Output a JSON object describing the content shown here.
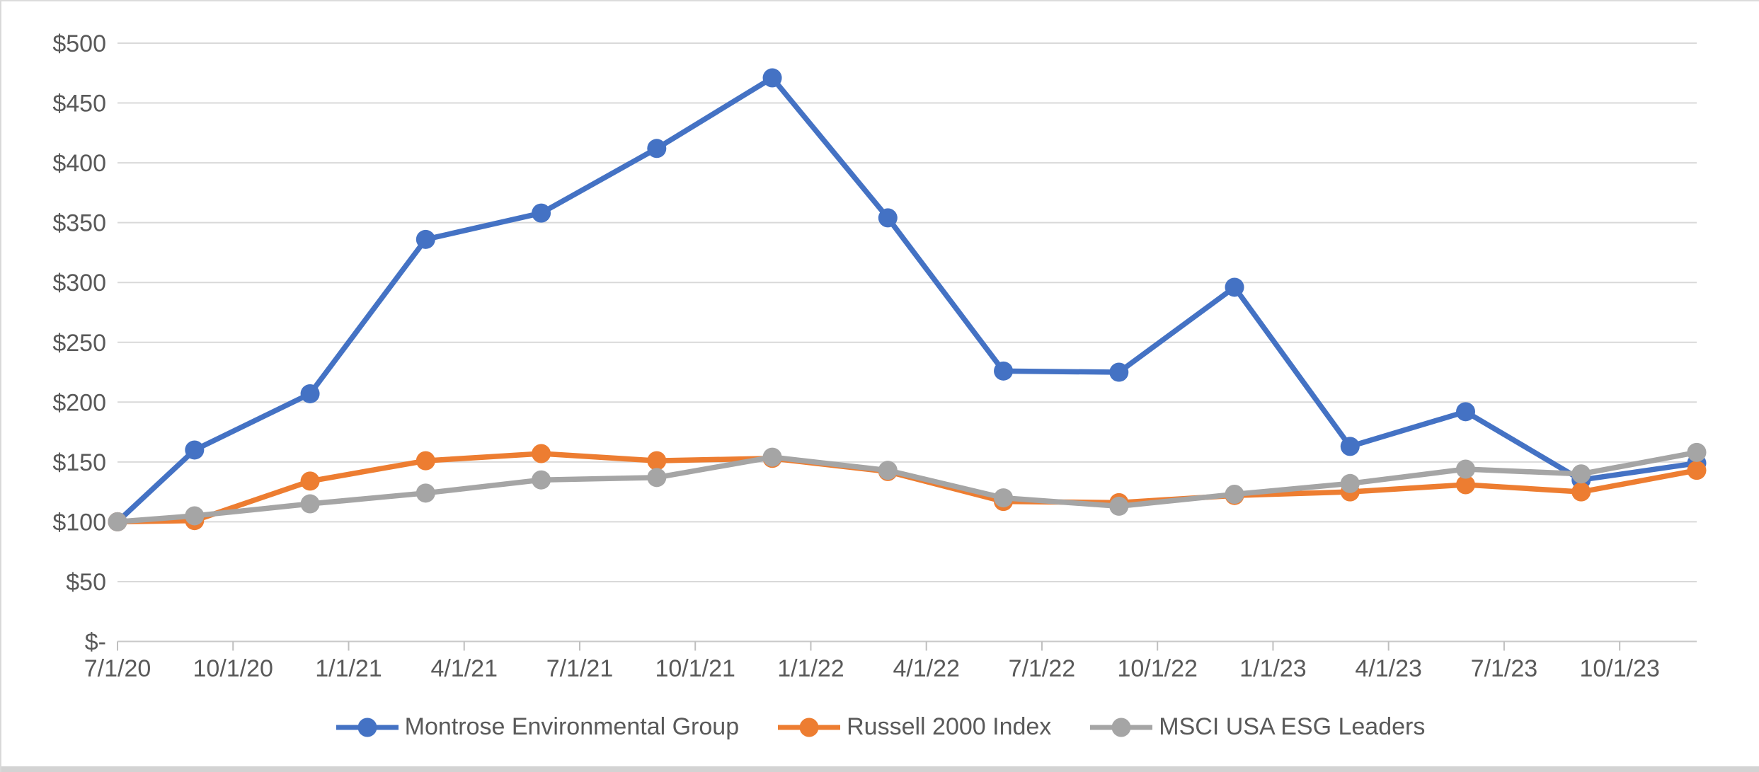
{
  "chart_data": {
    "type": "line",
    "title": "",
    "xlabel": "",
    "ylabel": "",
    "x": [
      "7/1/20",
      "9/30/20",
      "12/31/20",
      "3/31/21",
      "6/30/21",
      "9/30/21",
      "12/31/21",
      "3/31/22",
      "6/30/22",
      "9/30/22",
      "12/31/22",
      "3/31/23",
      "6/30/23",
      "9/30/23",
      "12/31/23"
    ],
    "x_month_offsets": [
      0,
      2,
      5,
      8,
      11,
      14,
      17,
      20,
      23,
      26,
      29,
      32,
      35,
      38,
      41
    ],
    "x_tick_labels": [
      "7/1/20",
      "10/1/20",
      "1/1/21",
      "4/1/21",
      "7/1/21",
      "10/1/21",
      "1/1/22",
      "4/1/22",
      "7/1/22",
      "10/1/22",
      "1/1/23",
      "4/1/23",
      "7/1/23",
      "10/1/23"
    ],
    "x_tick_month_offsets": [
      0,
      3,
      6,
      9,
      12,
      15,
      18,
      21,
      24,
      27,
      30,
      33,
      36,
      39
    ],
    "ylim": [
      0,
      500
    ],
    "y_tick_step": 50,
    "y_tick_labels": [
      "$-",
      "$50",
      "$100",
      "$150",
      "$200",
      "$250",
      "$300",
      "$350",
      "$400",
      "$450",
      "$500"
    ],
    "grid": true,
    "legend_position": "bottom",
    "series": [
      {
        "name": "Montrose Environmental Group",
        "color": "#4472C4",
        "values": [
          100,
          160,
          207,
          336,
          358,
          412,
          471,
          354,
          226,
          225,
          296,
          163,
          192,
          135,
          149
        ]
      },
      {
        "name": "Russell 2000 Index",
        "color": "#ED7D31",
        "values": [
          100,
          101,
          134,
          151,
          157,
          151,
          153,
          142,
          117,
          116,
          122,
          125,
          131,
          125,
          143
        ]
      },
      {
        "name": "MSCI USA ESG Leaders",
        "color": "#A5A5A5",
        "values": [
          100,
          105,
          115,
          124,
          135,
          137,
          154,
          143,
          120,
          113,
          123,
          132,
          144,
          140,
          158
        ]
      }
    ],
    "style": {
      "gridline_color": "#D9D9D9",
      "axis_line_color": "#C9C9C9",
      "tick_color": "#BFBFBF",
      "axis_text_color": "#595959"
    }
  }
}
